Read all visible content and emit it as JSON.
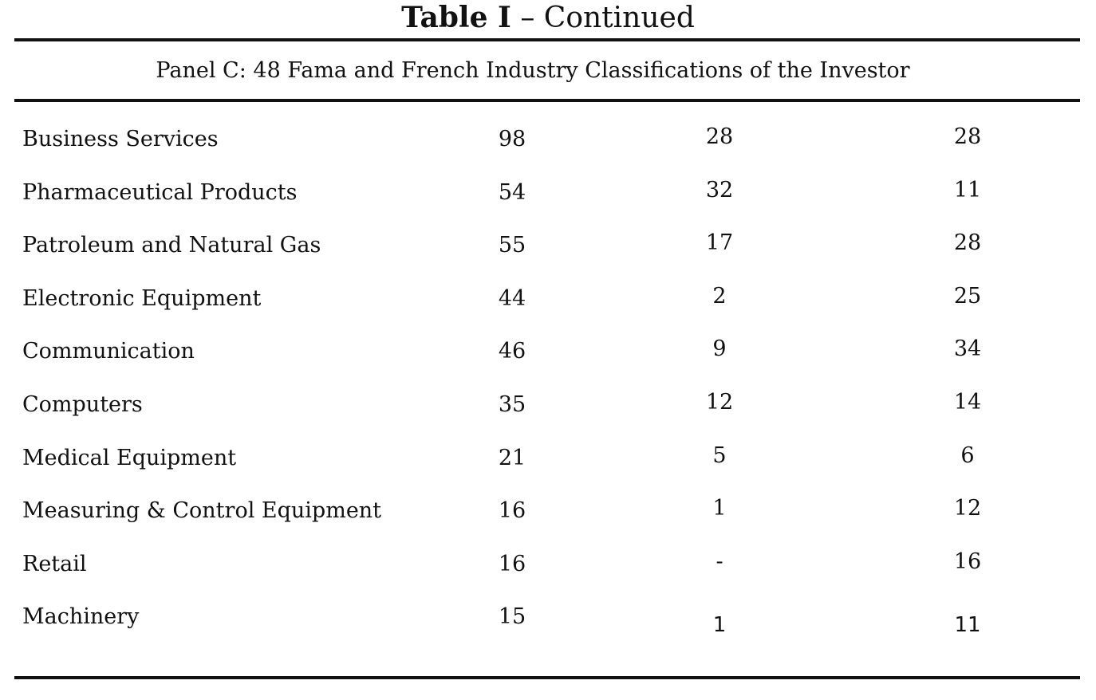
{
  "title": {
    "bold_part": "Table I",
    "rest": " – Continued"
  },
  "panel_title": "Panel C: 48 Fama and French Industry Classifications of the Investor",
  "rows": [
    {
      "label": "Business Services",
      "v1": "98",
      "v2": "28",
      "v3": "28"
    },
    {
      "label": "Pharmaceutical Products",
      "v1": "54",
      "v2": "32",
      "v3": "11"
    },
    {
      "label": "Patroleum and Natural Gas",
      "v1": "55",
      "v2": "17",
      "v3": "28"
    },
    {
      "label": "Electronic Equipment",
      "v1": "44",
      "v2": "2",
      "v3": "25"
    },
    {
      "label": "Communication",
      "v1": "46",
      "v2": "9",
      "v3": "34"
    },
    {
      "label": "Computers",
      "v1": "35",
      "v2": "12",
      "v3": "14"
    },
    {
      "label": "Medical Equipment",
      "v1": "21",
      "v2": "5",
      "v3": "6"
    },
    {
      "label": "Measuring & Control Equipment",
      "v1": "16",
      "v2": "1",
      "v3": "12"
    },
    {
      "label": "Retail",
      "v1": "16",
      "v2": "-",
      "v3": "16"
    },
    {
      "label": "Machinery",
      "v1": "15",
      "v2": "1",
      "v3": "11"
    }
  ]
}
